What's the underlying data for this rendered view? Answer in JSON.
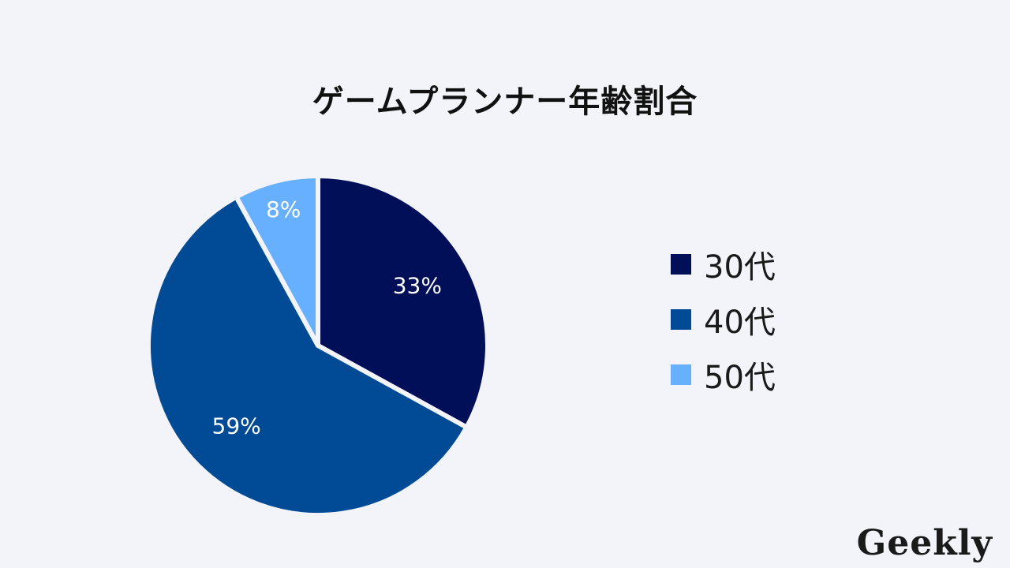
{
  "chart_data": {
    "type": "pie",
    "title": "ゲームプランナー年齢割合",
    "categories": [
      "30代",
      "40代",
      "50代"
    ],
    "values": [
      33,
      59,
      8
    ],
    "value_labels": [
      "33%",
      "59%",
      "8%"
    ],
    "colors": [
      "#010e58",
      "#004a96",
      "#66b0ff"
    ],
    "start_angle": "12 o'clock",
    "direction": "clockwise",
    "legend_position": "right"
  },
  "brand": {
    "logo": "Geekly"
  }
}
